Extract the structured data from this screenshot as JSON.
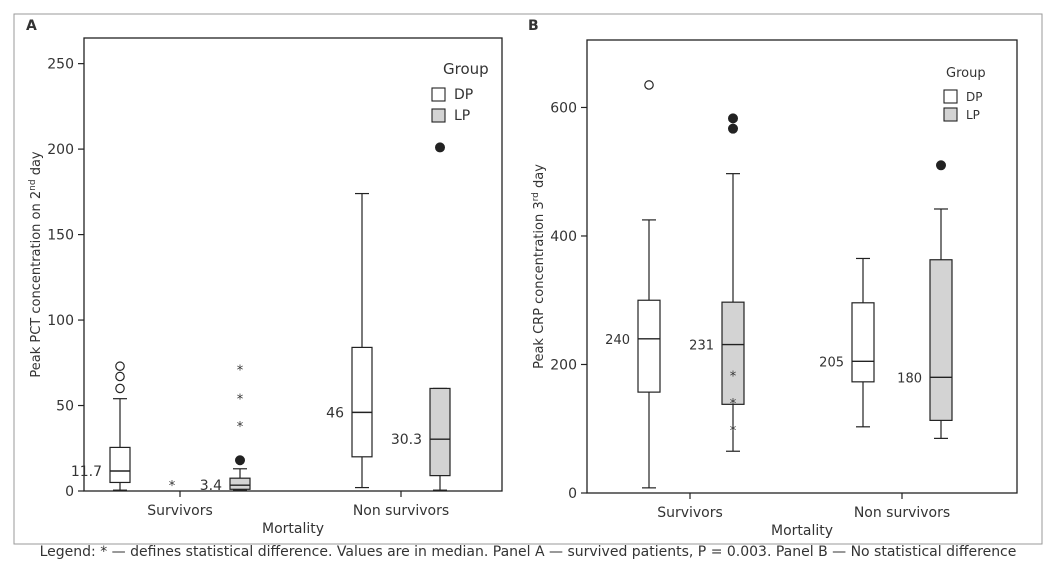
{
  "figure": {
    "legend_text": "Legend: * — defines statistical difference. Values are in median. Panel A — survived patients, P = 0.003. Panel B — No statistical difference"
  },
  "chart_data": [
    {
      "type": "boxplot",
      "panel_label": "A",
      "title": "",
      "xlabel": "Mortality",
      "ylabel_main": "Peak PCT concentration on 2",
      "ylabel_sup": "nd",
      "ylabel_tail": " day",
      "ylim": [
        0,
        265
      ],
      "yticks": [
        0,
        50,
        100,
        150,
        200,
        250
      ],
      "categories": [
        "Survivors",
        "Non survivors"
      ],
      "legend": {
        "title": "Group",
        "position": "top-right",
        "entries": [
          "DP",
          "LP"
        ]
      },
      "colors": {
        "DP": "#ffffff",
        "LP": "#d3d3d3"
      },
      "significance_marker": "*",
      "series": [
        {
          "name": "DP",
          "boxes": [
            {
              "category": "Survivors",
              "min": 0.5,
              "q1": 5,
              "median": 11.7,
              "q3": 25.5,
              "max": 54,
              "median_label": "11.7",
              "outliers": [
                {
                  "value": 60,
                  "marker": "o"
                },
                {
                  "value": 67,
                  "marker": "o"
                },
                {
                  "value": 73,
                  "marker": "o"
                }
              ]
            },
            {
              "category": "Non survivors",
              "min": 2,
              "q1": 20,
              "median": 46,
              "q3": 84,
              "max": 174,
              "median_label": "46",
              "outliers": []
            }
          ]
        },
        {
          "name": "LP",
          "boxes": [
            {
              "category": "Survivors",
              "min": 0.5,
              "q1": 1,
              "median": 3.4,
              "q3": 7.5,
              "max": 13,
              "median_label": "3.4",
              "outliers": [
                {
                  "value": 18,
                  "marker": "●"
                },
                {
                  "value": 38,
                  "marker": "*"
                },
                {
                  "value": 54,
                  "marker": "*"
                },
                {
                  "value": 71,
                  "marker": "*"
                }
              ]
            },
            {
              "category": "Non survivors",
              "min": 0.5,
              "q1": 9,
              "median": 30.3,
              "q3": 60,
              "max": 60,
              "median_label": "30.3",
              "outliers": [
                {
                  "value": 201,
                  "marker": "●"
                }
              ]
            }
          ]
        }
      ]
    },
    {
      "type": "boxplot",
      "panel_label": "B",
      "title": "",
      "xlabel": "Mortality",
      "ylabel_main": "Peak CRP concentration 3",
      "ylabel_sup": "rd",
      "ylabel_tail": " day",
      "ylim": [
        0,
        705
      ],
      "yticks": [
        0,
        200,
        400,
        600
      ],
      "categories": [
        "Survivors",
        "Non survivors"
      ],
      "legend": {
        "title": "Group",
        "position": "top-right",
        "entries": [
          "DP",
          "LP"
        ]
      },
      "colors": {
        "DP": "#ffffff",
        "LP": "#d3d3d3"
      },
      "series": [
        {
          "name": "DP",
          "boxes": [
            {
              "category": "Survivors",
              "min": 8,
              "q1": 157,
              "median": 240,
              "q3": 300,
              "max": 425,
              "median_label": "240",
              "outliers": [
                {
                  "value": 635,
                  "marker": "o"
                }
              ]
            },
            {
              "category": "Non survivors",
              "min": 103,
              "q1": 173,
              "median": 205,
              "q3": 296,
              "max": 365,
              "median_label": "205",
              "outliers": []
            }
          ]
        },
        {
          "name": "LP",
          "boxes": [
            {
              "category": "Survivors",
              "min": 65,
              "q1": 138,
              "median": 231,
              "q3": 297,
              "max": 497,
              "median_label": "231",
              "outliers": [
                {
                  "value": 567,
                  "marker": "●"
                },
                {
                  "value": 583,
                  "marker": "●"
                },
                {
                  "value": 183,
                  "marker": "*"
                },
                {
                  "value": 140,
                  "marker": "*"
                },
                {
                  "value": 98,
                  "marker": "*"
                }
              ]
            },
            {
              "category": "Non survivors",
              "min": 85,
              "q1": 113,
              "median": 180,
              "q3": 363,
              "max": 442,
              "median_label": "180",
              "outliers": [
                {
                  "value": 510,
                  "marker": "●"
                }
              ]
            }
          ]
        }
      ]
    }
  ]
}
